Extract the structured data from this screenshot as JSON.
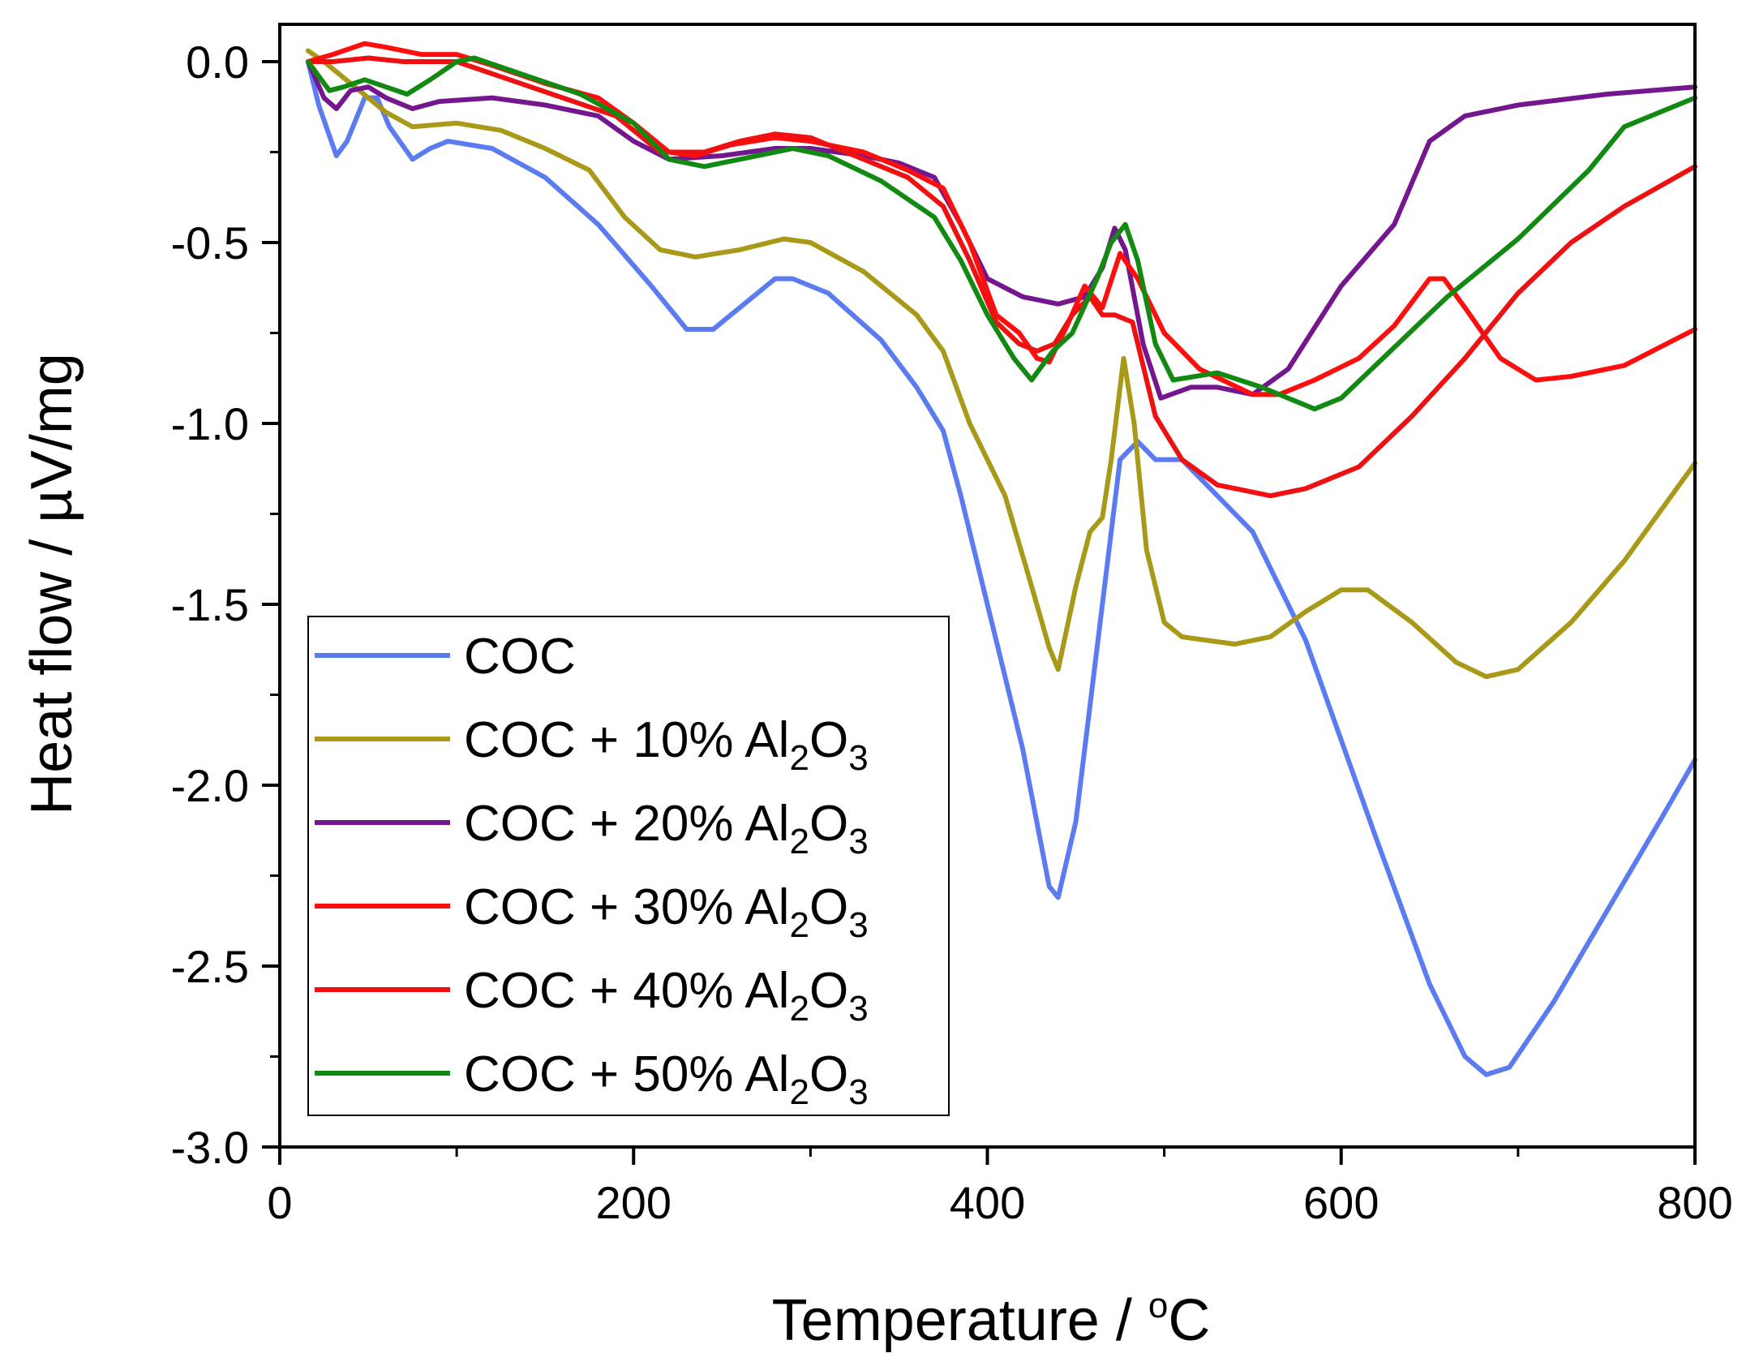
{
  "chart_data": {
    "type": "line",
    "title": "",
    "xlabel": "Temperature / ",
    "xlabel_unit_sup": "o",
    "xlabel_unit": "C",
    "ylabel": "Heat flow / µV/mg",
    "xlim": [
      0,
      800
    ],
    "ylim": [
      -3.0,
      0.1
    ],
    "grid": false,
    "legend_position": "bottom-left",
    "x_ticks": [
      0,
      200,
      400,
      600,
      800
    ],
    "x_tick_labels": [
      "0",
      "200",
      "400",
      "600",
      "800"
    ],
    "y_ticks": [
      0.0,
      -0.5,
      -1.0,
      -1.5,
      -2.0,
      -2.5,
      -3.0
    ],
    "y_tick_labels": [
      "0.0",
      "-0.5",
      "-1.0",
      "-1.5",
      "-2.0",
      "-2.5",
      "-3.0"
    ],
    "series": [
      {
        "name": "COC",
        "label_main": "COC",
        "label_pct": "",
        "color": "#5B7BF0",
        "points": [
          [
            16,
            0.0
          ],
          [
            22,
            -0.12
          ],
          [
            32,
            -0.26
          ],
          [
            38,
            -0.22
          ],
          [
            48,
            -0.1
          ],
          [
            55,
            -0.1
          ],
          [
            62,
            -0.18
          ],
          [
            75,
            -0.27
          ],
          [
            85,
            -0.24
          ],
          [
            95,
            -0.22
          ],
          [
            120,
            -0.24
          ],
          [
            150,
            -0.32
          ],
          [
            180,
            -0.45
          ],
          [
            210,
            -0.62
          ],
          [
            230,
            -0.74
          ],
          [
            245,
            -0.74
          ],
          [
            260,
            -0.68
          ],
          [
            280,
            -0.6
          ],
          [
            290,
            -0.6
          ],
          [
            310,
            -0.64
          ],
          [
            340,
            -0.77
          ],
          [
            360,
            -0.9
          ],
          [
            375,
            -1.02
          ],
          [
            385,
            -1.2
          ],
          [
            400,
            -1.5
          ],
          [
            420,
            -1.9
          ],
          [
            435,
            -2.28
          ],
          [
            440,
            -2.31
          ],
          [
            450,
            -2.1
          ],
          [
            465,
            -1.5
          ],
          [
            475,
            -1.1
          ],
          [
            485,
            -1.05
          ],
          [
            495,
            -1.1
          ],
          [
            510,
            -1.1
          ],
          [
            530,
            -1.2
          ],
          [
            550,
            -1.3
          ],
          [
            580,
            -1.6
          ],
          [
            620,
            -2.15
          ],
          [
            650,
            -2.55
          ],
          [
            670,
            -2.75
          ],
          [
            682,
            -2.8
          ],
          [
            695,
            -2.78
          ],
          [
            720,
            -2.6
          ],
          [
            750,
            -2.35
          ],
          [
            780,
            -2.1
          ],
          [
            800,
            -1.93
          ]
        ]
      },
      {
        "name": "COC + 10% Al2O3",
        "label_main": "COC + 10% Al",
        "label_sub1": "2",
        "label_mid": "O",
        "label_sub2": "3",
        "color": "#A89A18",
        "points": [
          [
            16,
            0.03
          ],
          [
            25,
            0.0
          ],
          [
            40,
            -0.06
          ],
          [
            60,
            -0.14
          ],
          [
            75,
            -0.18
          ],
          [
            100,
            -0.17
          ],
          [
            125,
            -0.19
          ],
          [
            150,
            -0.24
          ],
          [
            175,
            -0.3
          ],
          [
            195,
            -0.43
          ],
          [
            215,
            -0.52
          ],
          [
            235,
            -0.54
          ],
          [
            260,
            -0.52
          ],
          [
            285,
            -0.49
          ],
          [
            300,
            -0.5
          ],
          [
            330,
            -0.58
          ],
          [
            360,
            -0.7
          ],
          [
            375,
            -0.8
          ],
          [
            390,
            -1.0
          ],
          [
            410,
            -1.2
          ],
          [
            425,
            -1.45
          ],
          [
            435,
            -1.62
          ],
          [
            440,
            -1.68
          ],
          [
            450,
            -1.45
          ],
          [
            458,
            -1.3
          ],
          [
            465,
            -1.26
          ],
          [
            470,
            -1.1
          ],
          [
            477,
            -0.82
          ],
          [
            483,
            -1.0
          ],
          [
            490,
            -1.35
          ],
          [
            500,
            -1.55
          ],
          [
            510,
            -1.59
          ],
          [
            540,
            -1.61
          ],
          [
            560,
            -1.59
          ],
          [
            580,
            -1.52
          ],
          [
            600,
            -1.46
          ],
          [
            615,
            -1.46
          ],
          [
            640,
            -1.55
          ],
          [
            665,
            -1.66
          ],
          [
            682,
            -1.7
          ],
          [
            700,
            -1.68
          ],
          [
            730,
            -1.55
          ],
          [
            760,
            -1.38
          ],
          [
            800,
            -1.11
          ]
        ]
      },
      {
        "name": "COC + 20% Al2O3",
        "label_main": "COC + 20% Al",
        "label_sub1": "2",
        "label_mid": "O",
        "label_sub2": "3",
        "color": "#74178F",
        "points": [
          [
            16,
            0.0
          ],
          [
            25,
            -0.1
          ],
          [
            32,
            -0.13
          ],
          [
            40,
            -0.08
          ],
          [
            50,
            -0.07
          ],
          [
            60,
            -0.1
          ],
          [
            75,
            -0.13
          ],
          [
            90,
            -0.11
          ],
          [
            120,
            -0.1
          ],
          [
            150,
            -0.12
          ],
          [
            180,
            -0.15
          ],
          [
            200,
            -0.22
          ],
          [
            220,
            -0.27
          ],
          [
            250,
            -0.26
          ],
          [
            280,
            -0.24
          ],
          [
            300,
            -0.24
          ],
          [
            330,
            -0.26
          ],
          [
            350,
            -0.28
          ],
          [
            370,
            -0.32
          ],
          [
            385,
            -0.45
          ],
          [
            400,
            -0.6
          ],
          [
            420,
            -0.65
          ],
          [
            440,
            -0.67
          ],
          [
            455,
            -0.65
          ],
          [
            465,
            -0.57
          ],
          [
            472,
            -0.46
          ],
          [
            478,
            -0.52
          ],
          [
            488,
            -0.78
          ],
          [
            498,
            -0.93
          ],
          [
            515,
            -0.9
          ],
          [
            530,
            -0.9
          ],
          [
            550,
            -0.92
          ],
          [
            570,
            -0.85
          ],
          [
            600,
            -0.62
          ],
          [
            630,
            -0.45
          ],
          [
            650,
            -0.22
          ],
          [
            670,
            -0.15
          ],
          [
            700,
            -0.12
          ],
          [
            750,
            -0.09
          ],
          [
            800,
            -0.07
          ]
        ]
      },
      {
        "name": "COC + 30% Al2O3",
        "label_main": "COC + 30% Al",
        "label_sub1": "2",
        "label_mid": "O",
        "label_sub2": "3",
        "color": "#FF0E0E",
        "points": [
          [
            16,
            0.0
          ],
          [
            30,
            0.02
          ],
          [
            48,
            0.05
          ],
          [
            60,
            0.04
          ],
          [
            80,
            0.02
          ],
          [
            100,
            0.02
          ],
          [
            120,
            -0.01
          ],
          [
            150,
            -0.06
          ],
          [
            180,
            -0.1
          ],
          [
            200,
            -0.17
          ],
          [
            220,
            -0.25
          ],
          [
            235,
            -0.26
          ],
          [
            255,
            -0.23
          ],
          [
            280,
            -0.21
          ],
          [
            300,
            -0.22
          ],
          [
            330,
            -0.25
          ],
          [
            355,
            -0.3
          ],
          [
            375,
            -0.35
          ],
          [
            390,
            -0.5
          ],
          [
            405,
            -0.7
          ],
          [
            418,
            -0.75
          ],
          [
            428,
            -0.82
          ],
          [
            435,
            -0.83
          ],
          [
            445,
            -0.73
          ],
          [
            455,
            -0.62
          ],
          [
            465,
            -0.68
          ],
          [
            475,
            -0.53
          ],
          [
            485,
            -0.6
          ],
          [
            500,
            -0.75
          ],
          [
            520,
            -0.85
          ],
          [
            550,
            -0.92
          ],
          [
            565,
            -0.92
          ],
          [
            585,
            -0.88
          ],
          [
            610,
            -0.82
          ],
          [
            630,
            -0.73
          ],
          [
            650,
            -0.6
          ],
          [
            658,
            -0.6
          ],
          [
            670,
            -0.68
          ],
          [
            690,
            -0.82
          ],
          [
            710,
            -0.88
          ],
          [
            730,
            -0.87
          ],
          [
            760,
            -0.84
          ],
          [
            800,
            -0.74
          ]
        ]
      },
      {
        "name": "COC + 40% Al2O3",
        "label_main": "COC + 40% Al",
        "label_sub1": "2",
        "label_mid": "O",
        "label_sub2": "3",
        "color": "#EF1111",
        "points": [
          [
            16,
            0.0
          ],
          [
            30,
            0.0
          ],
          [
            50,
            0.01
          ],
          [
            70,
            0.0
          ],
          [
            100,
            0.0
          ],
          [
            130,
            -0.05
          ],
          [
            160,
            -0.1
          ],
          [
            190,
            -0.15
          ],
          [
            215,
            -0.25
          ],
          [
            240,
            -0.25
          ],
          [
            260,
            -0.22
          ],
          [
            280,
            -0.2
          ],
          [
            300,
            -0.21
          ],
          [
            330,
            -0.27
          ],
          [
            355,
            -0.32
          ],
          [
            375,
            -0.4
          ],
          [
            390,
            -0.55
          ],
          [
            405,
            -0.72
          ],
          [
            418,
            -0.78
          ],
          [
            428,
            -0.8
          ],
          [
            438,
            -0.78
          ],
          [
            448,
            -0.7
          ],
          [
            458,
            -0.65
          ],
          [
            465,
            -0.7
          ],
          [
            472,
            -0.7
          ],
          [
            482,
            -0.72
          ],
          [
            495,
            -0.98
          ],
          [
            510,
            -1.1
          ],
          [
            530,
            -1.17
          ],
          [
            560,
            -1.2
          ],
          [
            580,
            -1.18
          ],
          [
            610,
            -1.12
          ],
          [
            640,
            -0.98
          ],
          [
            670,
            -0.82
          ],
          [
            700,
            -0.64
          ],
          [
            730,
            -0.5
          ],
          [
            760,
            -0.4
          ],
          [
            800,
            -0.29
          ]
        ]
      },
      {
        "name": "COC + 50% Al2O3",
        "label_main": "COC + 50% Al",
        "label_sub1": "2",
        "label_mid": "O",
        "label_sub2": "3",
        "color": "#128A12",
        "points": [
          [
            16,
            0.0
          ],
          [
            28,
            -0.08
          ],
          [
            36,
            -0.07
          ],
          [
            48,
            -0.05
          ],
          [
            60,
            -0.07
          ],
          [
            72,
            -0.09
          ],
          [
            85,
            -0.05
          ],
          [
            100,
            0.0
          ],
          [
            110,
            0.01
          ],
          [
            140,
            -0.04
          ],
          [
            170,
            -0.09
          ],
          [
            200,
            -0.17
          ],
          [
            220,
            -0.27
          ],
          [
            240,
            -0.29
          ],
          [
            260,
            -0.27
          ],
          [
            290,
            -0.24
          ],
          [
            310,
            -0.26
          ],
          [
            340,
            -0.33
          ],
          [
            370,
            -0.43
          ],
          [
            385,
            -0.55
          ],
          [
            400,
            -0.7
          ],
          [
            415,
            -0.82
          ],
          [
            425,
            -0.88
          ],
          [
            437,
            -0.8
          ],
          [
            448,
            -0.75
          ],
          [
            462,
            -0.6
          ],
          [
            470,
            -0.5
          ],
          [
            478,
            -0.45
          ],
          [
            485,
            -0.55
          ],
          [
            495,
            -0.78
          ],
          [
            505,
            -0.88
          ],
          [
            530,
            -0.86
          ],
          [
            555,
            -0.9
          ],
          [
            585,
            -0.96
          ],
          [
            600,
            -0.93
          ],
          [
            630,
            -0.79
          ],
          [
            660,
            -0.65
          ],
          [
            700,
            -0.49
          ],
          [
            740,
            -0.3
          ],
          [
            760,
            -0.18
          ],
          [
            800,
            -0.1
          ]
        ]
      }
    ]
  }
}
